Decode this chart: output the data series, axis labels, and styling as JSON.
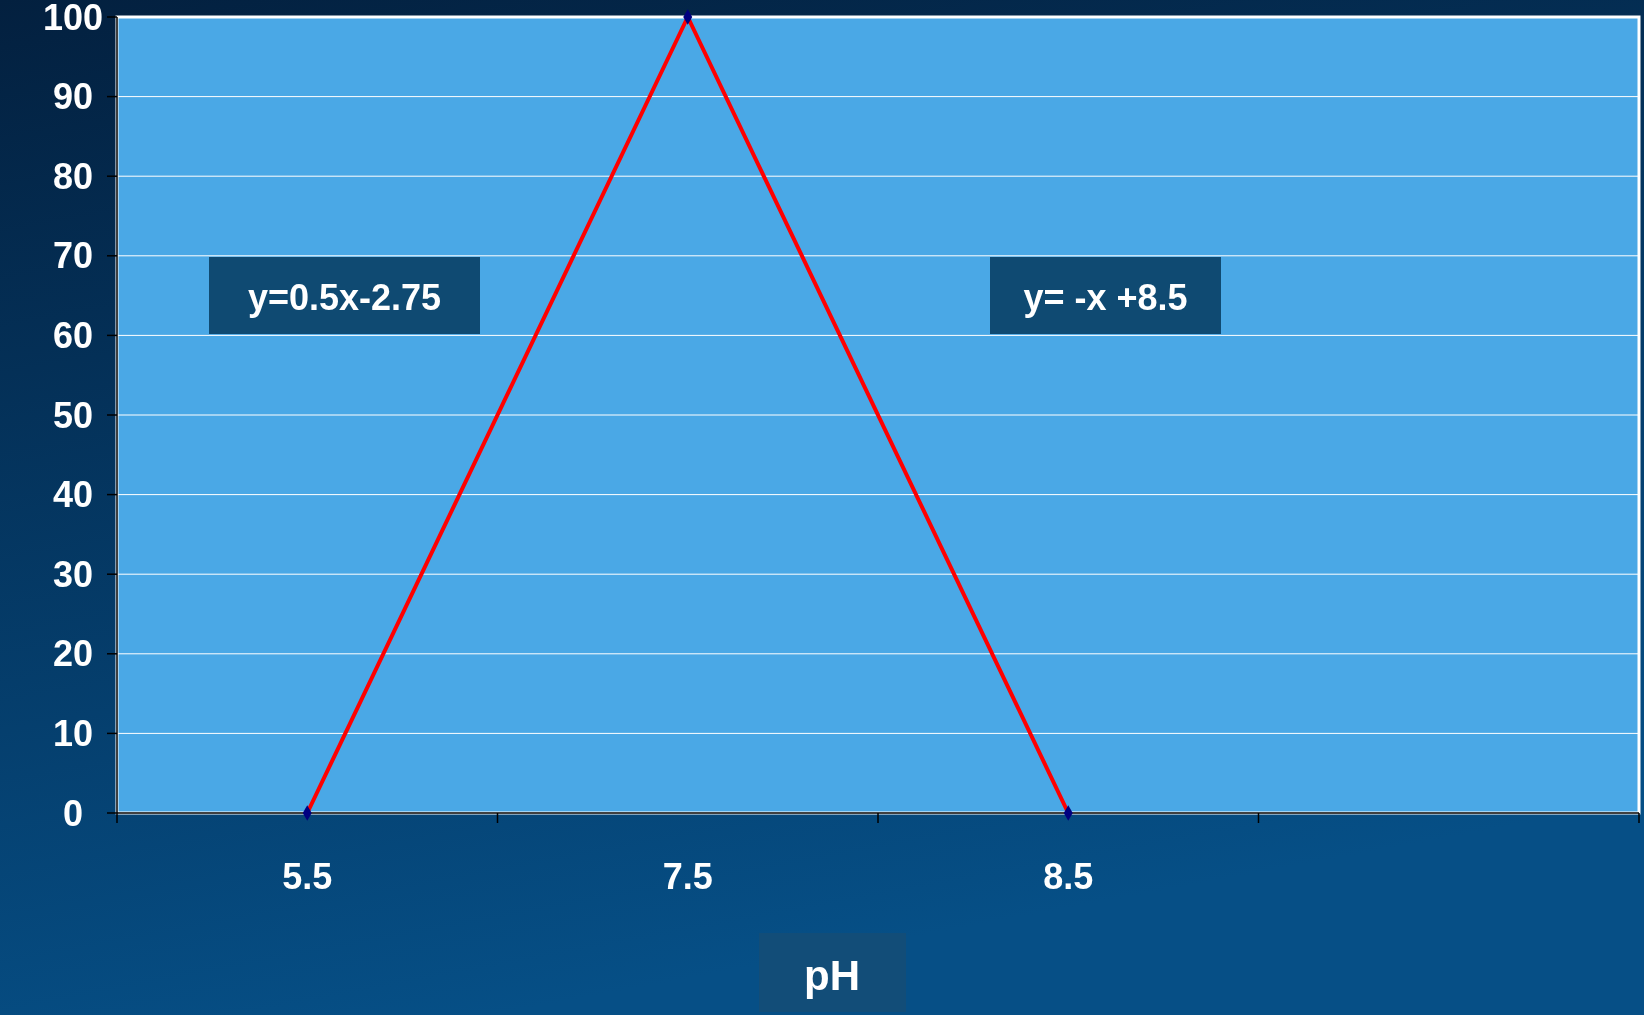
{
  "chart_data": {
    "type": "line",
    "xlabel": "pH",
    "categories": [
      "5.5",
      "7.5",
      "8.5",
      null
    ],
    "series": [
      {
        "color": "#ff0000",
        "values": [
          0,
          100,
          0,
          null
        ]
      }
    ],
    "ylim": [
      0,
      100
    ],
    "yticks": [
      0,
      10,
      20,
      30,
      40,
      50,
      60,
      70,
      80,
      90,
      100
    ],
    "grid": "y",
    "marker": "diamond",
    "line_style": "solid",
    "annotations": [
      "y=0.5x-2.75",
      "y= -x +8.5"
    ]
  }
}
